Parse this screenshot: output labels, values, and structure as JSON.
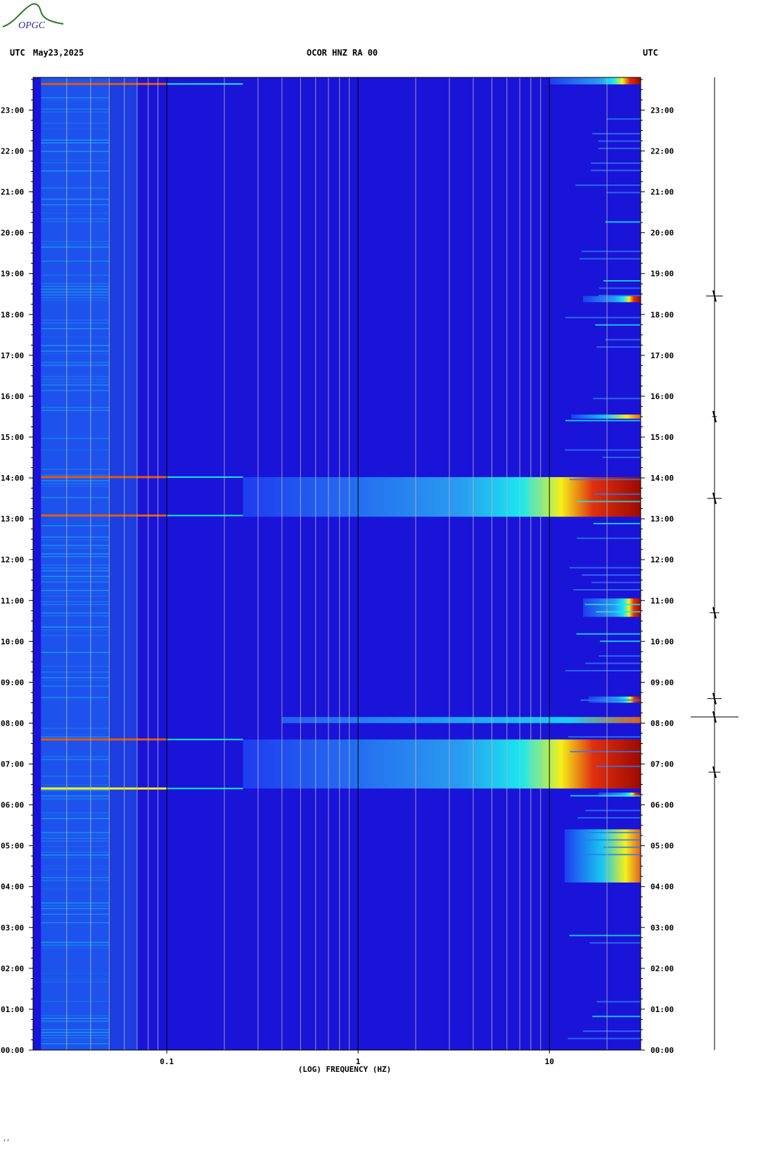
{
  "header": {
    "left_tz": "UTC",
    "date": "May23,2025",
    "station": "OCOR HNZ RA 00",
    "right_tz": "UTC"
  },
  "logo": {
    "text": "OPGC"
  },
  "corner_mark": "‘’",
  "colors": {
    "background_low": "#1a14d8",
    "low_freq_band": "#1f5ef0",
    "cyan": "#19e8f0",
    "yellow": "#f4f01a",
    "red": "#9e0a00",
    "trace": "#000000"
  },
  "chart_data": {
    "type": "heatmap",
    "title": "OCOR HNZ RA 00",
    "xlabel": "(LOG) FREQUENCY (HZ)",
    "ylabel": "",
    "x_scale": "log",
    "xlim": [
      0.02,
      30
    ],
    "x_ticks": [
      {
        "value": 0.1,
        "label": "0.1"
      },
      {
        "value": 1,
        "label": "1"
      },
      {
        "value": 10,
        "label": "10"
      }
    ],
    "y_unit": "UTC hour",
    "ylim": [
      0,
      23.8
    ],
    "y_tick_labels": [
      "00:00",
      "01:00",
      "02:00",
      "03:00",
      "04:00",
      "05:00",
      "06:00",
      "07:00",
      "08:00",
      "09:00",
      "10:00",
      "11:00",
      "12:00",
      "13:00",
      "14:00",
      "15:00",
      "16:00",
      "17:00",
      "18:00",
      "19:00",
      "20:00",
      "21:00",
      "22:00",
      "23:00"
    ],
    "events": [
      {
        "start": 23.63,
        "end": 23.8,
        "fmin": 10,
        "intensity": "red"
      },
      {
        "start": 13.05,
        "end": 14.02,
        "fmin": 0.25,
        "intensity": "red"
      },
      {
        "start": 6.4,
        "end": 7.6,
        "fmin": 0.25,
        "intensity": "red"
      },
      {
        "start": 18.3,
        "end": 18.45,
        "fmin": 15,
        "intensity": "red"
      },
      {
        "start": 15.45,
        "end": 15.55,
        "fmin": 13,
        "intensity": "yellow"
      },
      {
        "start": 10.6,
        "end": 11.05,
        "fmin": 15,
        "intensity": "red"
      },
      {
        "start": 8.0,
        "end": 8.15,
        "fmin": 0.4,
        "intensity": "cyan"
      },
      {
        "start": 8.5,
        "end": 8.65,
        "fmin": 16,
        "intensity": "red"
      },
      {
        "start": 4.1,
        "end": 5.4,
        "fmin": 12,
        "intensity": "yellow"
      },
      {
        "start": 6.2,
        "end": 6.3,
        "fmin": 18,
        "intensity": "red"
      }
    ],
    "low_freq_lines": [
      {
        "time": 23.64,
        "color": "red"
      },
      {
        "time": 14.02,
        "color": "red"
      },
      {
        "time": 13.08,
        "color": "red"
      },
      {
        "time": 7.6,
        "color": "red"
      },
      {
        "time": 6.4,
        "color": "yellow"
      }
    ],
    "trace_events": [
      {
        "time": 18.45,
        "amplitude": 0.35
      },
      {
        "time": 13.5,
        "amplitude": 0.3
      },
      {
        "time": 10.7,
        "amplitude": 0.2
      },
      {
        "time": 8.6,
        "amplitude": 0.3
      },
      {
        "time": 8.15,
        "amplitude": 1.0
      },
      {
        "time": 6.8,
        "amplitude": 0.25
      },
      {
        "time": 15.5,
        "amplitude": 0.1
      }
    ]
  }
}
